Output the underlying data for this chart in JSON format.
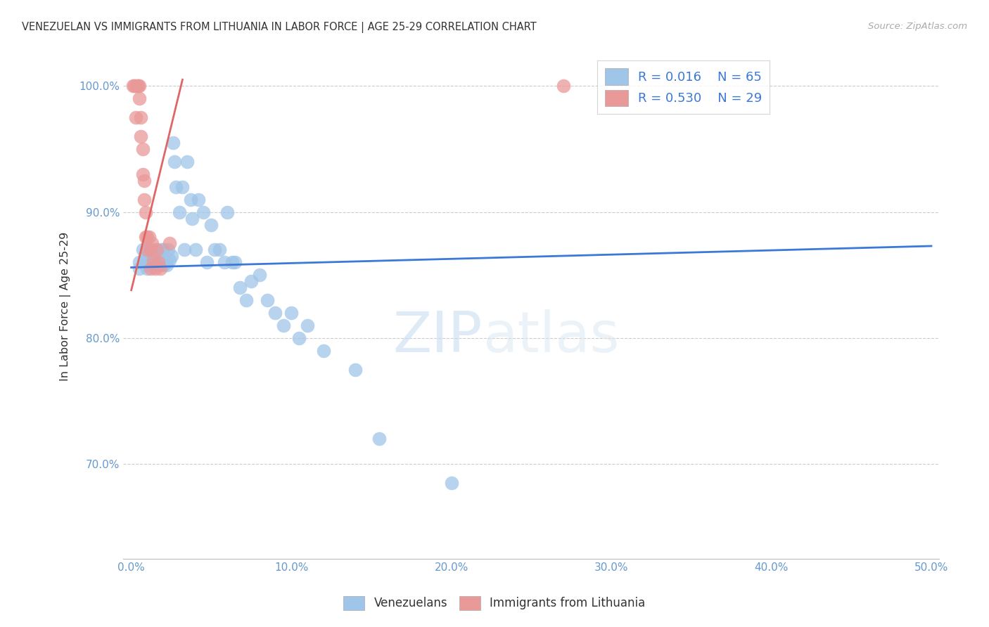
{
  "title": "VENEZUELAN VS IMMIGRANTS FROM LITHUANIA IN LABOR FORCE | AGE 25-29 CORRELATION CHART",
  "source": "Source: ZipAtlas.com",
  "ylabel": "In Labor Force | Age 25-29",
  "x_ticks": [
    "0.0%",
    "10.0%",
    "20.0%",
    "30.0%",
    "40.0%",
    "50.0%"
  ],
  "x_tick_vals": [
    0.0,
    0.1,
    0.2,
    0.3,
    0.4,
    0.5
  ],
  "y_ticks": [
    "100.0%",
    "90.0%",
    "80.0%",
    "70.0%"
  ],
  "y_tick_vals": [
    1.0,
    0.9,
    0.8,
    0.7
  ],
  "xlim": [
    -0.005,
    0.505
  ],
  "ylim": [
    0.625,
    1.025
  ],
  "blue_R": 0.016,
  "blue_N": 65,
  "pink_R": 0.53,
  "pink_N": 29,
  "blue_color": "#9fc5e8",
  "pink_color": "#ea9999",
  "blue_line_color": "#3c78d8",
  "pink_line_color": "#e06666",
  "watermark_zip": "ZIP",
  "watermark_atlas": "atlas",
  "legend_label_blue": "Venezuelans",
  "legend_label_pink": "Immigrants from Lithuania",
  "blue_points_x": [
    0.005,
    0.005,
    0.007,
    0.008,
    0.009,
    0.01,
    0.01,
    0.01,
    0.011,
    0.011,
    0.012,
    0.012,
    0.013,
    0.014,
    0.015,
    0.015,
    0.016,
    0.016,
    0.017,
    0.018,
    0.018,
    0.019,
    0.019,
    0.02,
    0.02,
    0.021,
    0.022,
    0.022,
    0.023,
    0.024,
    0.025,
    0.026,
    0.027,
    0.028,
    0.03,
    0.032,
    0.033,
    0.035,
    0.037,
    0.038,
    0.04,
    0.042,
    0.045,
    0.047,
    0.05,
    0.052,
    0.055,
    0.058,
    0.06,
    0.063,
    0.065,
    0.068,
    0.072,
    0.075,
    0.08,
    0.085,
    0.09,
    0.095,
    0.1,
    0.105,
    0.11,
    0.12,
    0.14,
    0.155,
    0.2
  ],
  "blue_points_y": [
    0.86,
    0.855,
    0.87,
    0.862,
    0.858,
    0.865,
    0.86,
    0.855,
    0.87,
    0.858,
    0.868,
    0.858,
    0.86,
    0.856,
    0.87,
    0.86,
    0.865,
    0.858,
    0.86,
    0.858,
    0.862,
    0.87,
    0.86,
    0.87,
    0.858,
    0.86,
    0.858,
    0.86,
    0.87,
    0.862,
    0.865,
    0.955,
    0.94,
    0.92,
    0.9,
    0.92,
    0.87,
    0.94,
    0.91,
    0.895,
    0.87,
    0.91,
    0.9,
    0.86,
    0.89,
    0.87,
    0.87,
    0.86,
    0.9,
    0.86,
    0.86,
    0.84,
    0.83,
    0.845,
    0.85,
    0.83,
    0.82,
    0.81,
    0.82,
    0.8,
    0.81,
    0.79,
    0.775,
    0.72,
    0.685
  ],
  "pink_points_x": [
    0.001,
    0.002,
    0.003,
    0.003,
    0.004,
    0.004,
    0.005,
    0.005,
    0.006,
    0.006,
    0.007,
    0.007,
    0.008,
    0.008,
    0.009,
    0.009,
    0.01,
    0.01,
    0.011,
    0.012,
    0.012,
    0.013,
    0.014,
    0.015,
    0.016,
    0.017,
    0.018,
    0.024,
    0.27
  ],
  "pink_points_y": [
    1.0,
    1.0,
    1.0,
    0.975,
    1.0,
    1.0,
    1.0,
    0.99,
    0.975,
    0.96,
    0.95,
    0.93,
    0.925,
    0.91,
    0.9,
    0.88,
    0.88,
    0.87,
    0.88,
    0.87,
    0.855,
    0.875,
    0.862,
    0.855,
    0.87,
    0.86,
    0.855,
    0.875,
    1.0
  ],
  "blue_trend_x": [
    0.0,
    0.5
  ],
  "blue_trend_y": [
    0.856,
    0.873
  ],
  "pink_trend_x": [
    0.0,
    0.032
  ],
  "pink_trend_y": [
    0.838,
    1.005
  ]
}
